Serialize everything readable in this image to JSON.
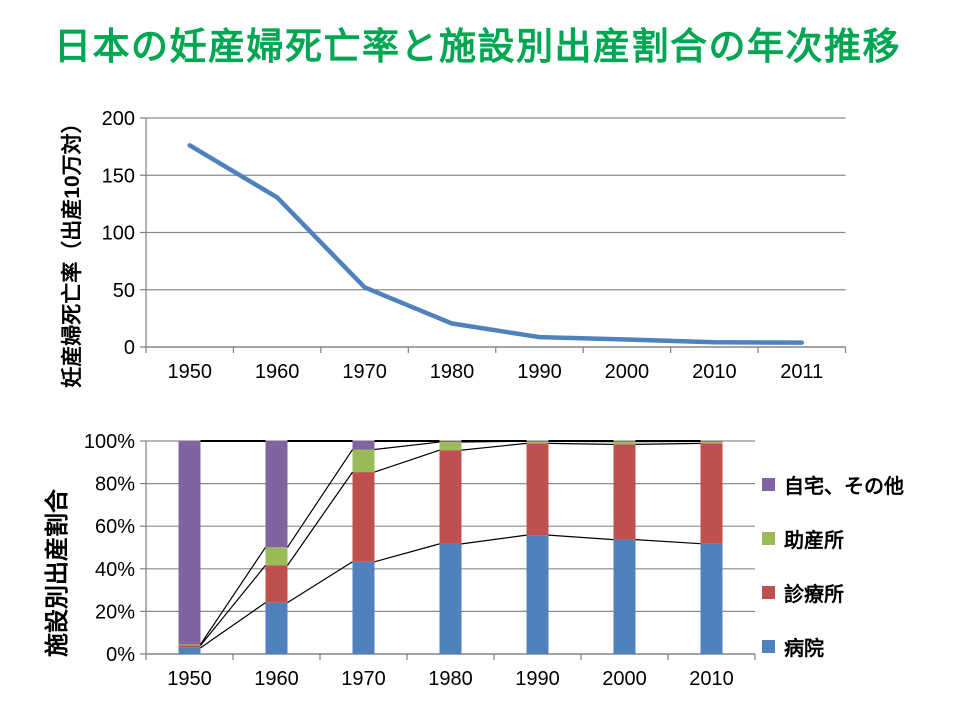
{
  "slide": {
    "title": "日本の妊産婦死亡率と施設別出産割合の年次推移",
    "title_color": "#00A651",
    "background": "#ffffff"
  },
  "colors": {
    "grid": "#8C8C8C",
    "axis": "#7F7F7F",
    "tick_text": "#000000",
    "connector_line": "#000000"
  },
  "chart_data": [
    {
      "id": "maternal-mortality",
      "type": "line",
      "ylabel": "妊産婦死亡率（出産10万対）",
      "categories": [
        "1950",
        "1960",
        "1970",
        "1980",
        "1990",
        "2000",
        "2010",
        "2011"
      ],
      "values": [
        176.1,
        130.6,
        52.1,
        20.5,
        8.6,
        6.6,
        4.1,
        3.8
      ],
      "ylim": [
        0,
        200
      ],
      "yticks": [
        0,
        50,
        100,
        150,
        200
      ],
      "grid": true,
      "line_color": "#4F81BD",
      "legend_position": "none"
    },
    {
      "id": "birth-place-share",
      "type": "bar",
      "stacked": true,
      "percent": true,
      "ylabel": "施設別出産割合",
      "categories": [
        "1950",
        "1960",
        "1970",
        "1980",
        "1990",
        "2000",
        "2010"
      ],
      "series": [
        {
          "name": "病院",
          "color": "#4F81BD",
          "values": [
            2.9,
            24.1,
            43.3,
            51.7,
            55.8,
            53.7,
            51.8
          ]
        },
        {
          "name": "診療所",
          "color": "#C0504D",
          "values": [
            1.1,
            17.5,
            42.1,
            44.0,
            43.1,
            44.7,
            47.1
          ]
        },
        {
          "name": "助産所",
          "color": "#9BBB59",
          "values": [
            0.5,
            8.5,
            10.6,
            3.8,
            1.0,
            1.3,
            0.9
          ]
        },
        {
          "name": "自宅、その他",
          "color": "#8064A2",
          "values": [
            95.5,
            49.9,
            4.0,
            0.5,
            0.1,
            0.3,
            0.2
          ]
        }
      ],
      "ylim": [
        0,
        100
      ],
      "yticks": [
        0,
        20,
        40,
        60,
        80,
        100
      ],
      "ytick_labels": [
        "0%",
        "20%",
        "40%",
        "60%",
        "80%",
        "100%"
      ],
      "grid": true,
      "series_lines": true,
      "legend_position": "right",
      "legend_order": [
        "自宅、その他",
        "助産所",
        "診療所",
        "病院"
      ]
    }
  ]
}
